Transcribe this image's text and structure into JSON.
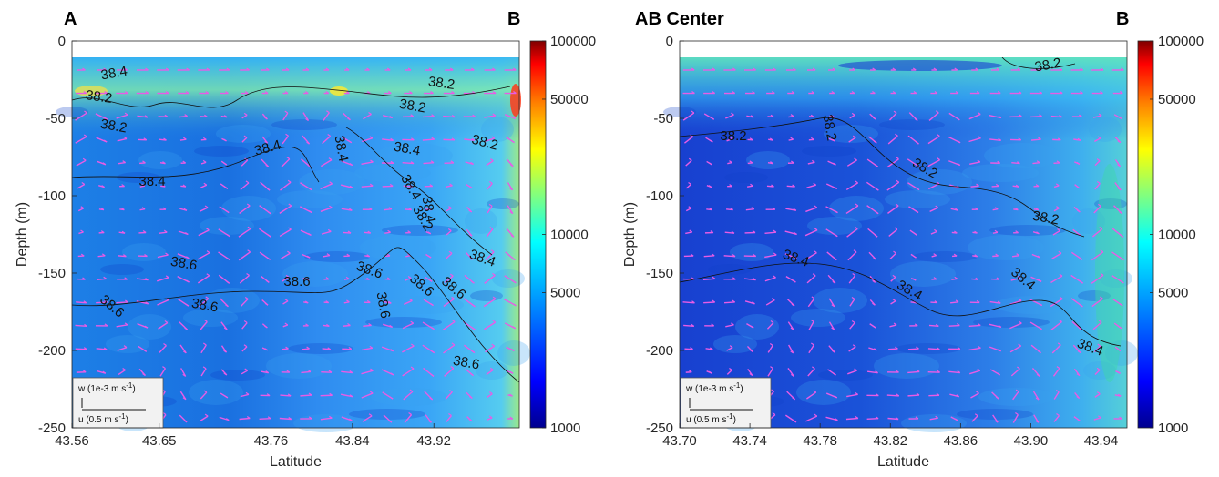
{
  "chart_data": [
    {
      "type": "heatmap",
      "title": "A",
      "title_right": "B",
      "xlabel": "Latitude",
      "ylabel": "Depth (m)",
      "xlim": [
        43.56,
        44.0
      ],
      "ylim": [
        -250,
        0
      ],
      "xticks": [
        "43.56",
        "43.65",
        "43.76",
        "43.84",
        "43.92"
      ],
      "yticks": [
        "0",
        "-50",
        "-100",
        "-150",
        "-200",
        "-250"
      ],
      "colorbar": {
        "scale": "log",
        "range": [
          1000,
          100000
        ],
        "ticks": [
          "100000",
          "50000",
          "10000",
          "5000",
          "1000"
        ]
      },
      "contour_labels": [
        "38.4",
        "38.2",
        "38.2",
        "38.2",
        "38.2",
        "38.2",
        "38.4",
        "38.4",
        "38.4",
        "38.4",
        "38.4",
        "38.4",
        "38.2",
        "38.4",
        "38.6",
        "38.6",
        "38.6",
        "38.6",
        "38.6",
        "38.6",
        "38.6",
        "38.6",
        "38.6"
      ],
      "vector_legend": {
        "w_label": "w (1e-3 m s",
        "u_label": "u (0.5 m s",
        "exponent": "-1",
        "close": ")"
      },
      "grid": false
    },
    {
      "type": "heatmap",
      "title": "AB Center",
      "title_right": "B",
      "xlabel": "Latitude",
      "ylabel": "Depth (m)",
      "xlim": [
        43.7,
        43.955
      ],
      "ylim": [
        -250,
        0
      ],
      "xticks": [
        "43.70",
        "43.74",
        "43.78",
        "43.82",
        "43.86",
        "43.90",
        "43.94"
      ],
      "yticks": [
        "0",
        "-50",
        "-100",
        "-150",
        "-200",
        "-250"
      ],
      "colorbar": {
        "scale": "log",
        "range": [
          1000,
          100000
        ],
        "ticks": [
          "100000",
          "50000",
          "10000",
          "5000",
          "1000"
        ]
      },
      "contour_labels": [
        "38.2",
        "38.2",
        "38.2",
        "38.2",
        "38.2",
        "38.4",
        "38.4",
        "38.4",
        "38.4"
      ],
      "vector_legend": {
        "w_label": "w (1e-3 m s",
        "u_label": "u (0.5 m s",
        "exponent": "-1",
        "close": ")"
      },
      "grid": false
    }
  ],
  "colors": {
    "vector": "#e85ce6",
    "contour": "#111111",
    "colormap": [
      "#00008f",
      "#0000ff",
      "#0080ff",
      "#00ffff",
      "#80ff80",
      "#ffff00",
      "#ff8000",
      "#ff0000",
      "#800000"
    ]
  }
}
